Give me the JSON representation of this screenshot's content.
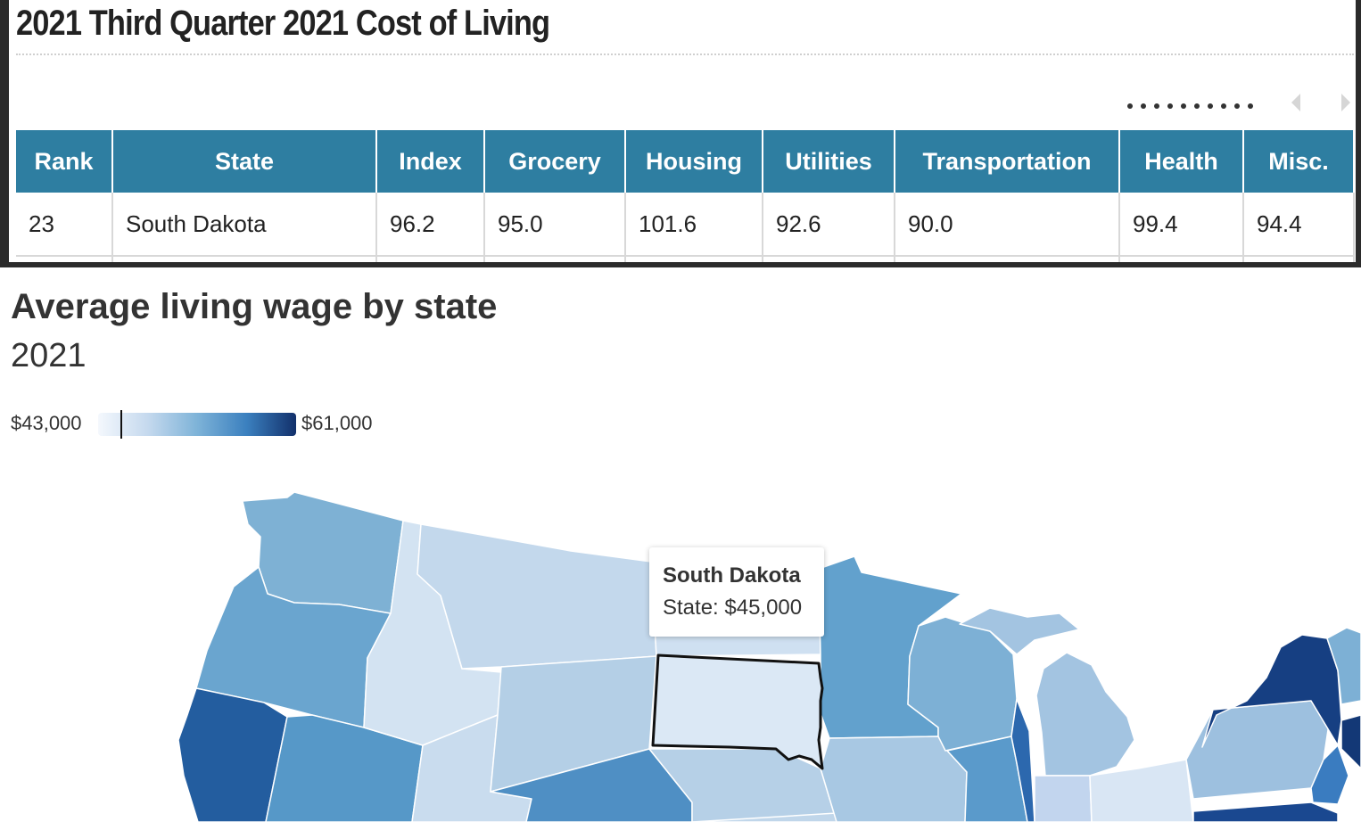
{
  "table": {
    "title": "2021 Third Quarter 2021 Cost of Living",
    "headers": [
      "Rank",
      "State",
      "Index",
      "Grocery",
      "Housing",
      "Utilities",
      "Transportation",
      "Health",
      "Misc."
    ],
    "rows": [
      [
        "23",
        "South Dakota",
        "96.2",
        "95.0",
        "101.6",
        "92.6",
        "90.0",
        "99.4",
        "94.4"
      ]
    ],
    "pager_dot_count": 10
  },
  "chart": {
    "title": "Average living wage by state",
    "subtitle": "2021",
    "legend": {
      "min_label": "$43,000",
      "max_label": "$61,000",
      "min": 43000,
      "max": 61000,
      "marker_value": 45000
    },
    "tooltip": {
      "state": "South Dakota",
      "value": "State: $45,000"
    },
    "colors": {
      "scale_low": "#f4f8fd",
      "scale_high": "#12306b",
      "header_bg": "#2e7ea1"
    }
  }
}
